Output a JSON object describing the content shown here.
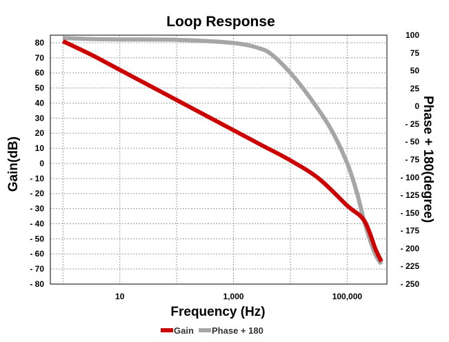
{
  "chart_data": {
    "type": "line",
    "title": "Loop Response",
    "xlabel": "Frequency (Hz)",
    "ylabel_left": "Gain(dB)",
    "ylabel_right": "Phase + 180(degree)",
    "x_scale": "log",
    "xlim": [
      0.6,
      500000
    ],
    "x_ticks": [
      {
        "value": 10,
        "label": "10"
      },
      {
        "value": 1000,
        "label": "1,000"
      },
      {
        "value": 100000,
        "label": "100,000"
      }
    ],
    "ylim_left": [
      -80,
      85
    ],
    "yticks_left": [
      "80",
      "70",
      "60",
      "50",
      "40",
      "30",
      "20",
      "10",
      "0",
      "- 10",
      "- 20",
      "- 30",
      "- 40",
      "- 50",
      "- 60",
      "- 70",
      "- 80"
    ],
    "ylim_right": [
      -250,
      100
    ],
    "yticks_right": [
      "100",
      "75",
      "50",
      "25",
      "0",
      "- 25",
      "- 50",
      "- 75",
      "- 100",
      "- 125",
      "- 150",
      "- 175",
      "- 200",
      "- 225",
      "- 250"
    ],
    "grid": true,
    "legend_position": "bottom",
    "series": [
      {
        "name": "Gain",
        "axis": "left",
        "color": "#cc0000",
        "x": [
          1,
          3.16,
          10,
          31.6,
          100,
          316,
          1000,
          3160,
          10000,
          31600,
          100000,
          200000,
          316000,
          400000
        ],
        "values": [
          81,
          72,
          62,
          52,
          42,
          32,
          22,
          12,
          2,
          -10,
          -28,
          -38,
          -57,
          -65
        ]
      },
      {
        "name": "Phase + 180",
        "axis": "right",
        "color": "#a6a6a6",
        "x": [
          1,
          3.16,
          10,
          100,
          1000,
          3000,
          5000,
          10000,
          20000,
          50000,
          100000,
          150000,
          200000,
          300000,
          400000
        ],
        "values": [
          96,
          94.5,
          94,
          93.5,
          89,
          81,
          71,
          47,
          17,
          -30,
          -80,
          -123,
          -162,
          -205,
          -222
        ]
      }
    ]
  }
}
